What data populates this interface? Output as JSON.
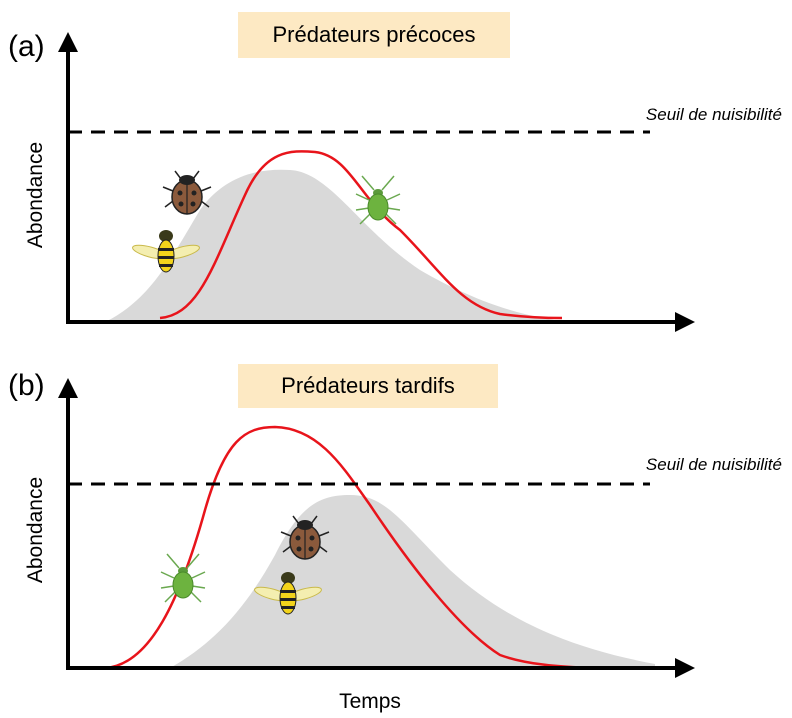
{
  "panels": [
    {
      "label": "(a)",
      "title": "Prédateurs précoces",
      "threshold": "Seuil de nuisibilité",
      "y_axis": "Abondance"
    },
    {
      "label": "(b)",
      "title": "Prédateurs tardifs",
      "threshold": "Seuil de nuisibilité",
      "y_axis": "Abondance"
    }
  ],
  "x_axis": "Temps"
}
